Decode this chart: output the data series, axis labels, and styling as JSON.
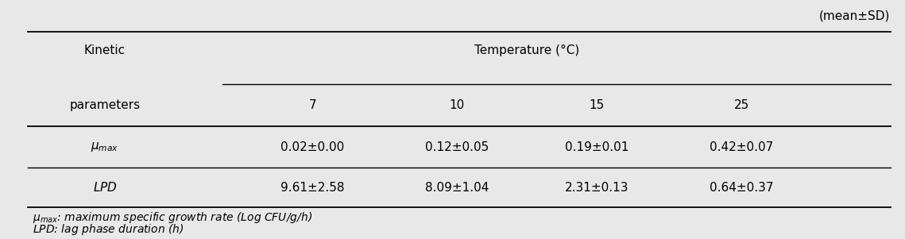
{
  "mean_sd_label": "(mean±SD)",
  "col_header_row1": "Temperature (°C)",
  "col_header_row2": [
    "7",
    "10",
    "15",
    "25"
  ],
  "row1_values": [
    "0.02±0.00",
    "0.12±0.05",
    "0.19±0.01",
    "0.42±0.07"
  ],
  "row2_values": [
    "9.61±2.58",
    "8.09±1.04",
    "2.31±0.13",
    "0.64±0.37"
  ],
  "footnote1_rest": ": maximum specific growth rate (Log CFU/g/h)",
  "footnote2_rest": ": lag phase duration (h)",
  "bg_color": "#e8e8e8",
  "table_font_size": 11
}
